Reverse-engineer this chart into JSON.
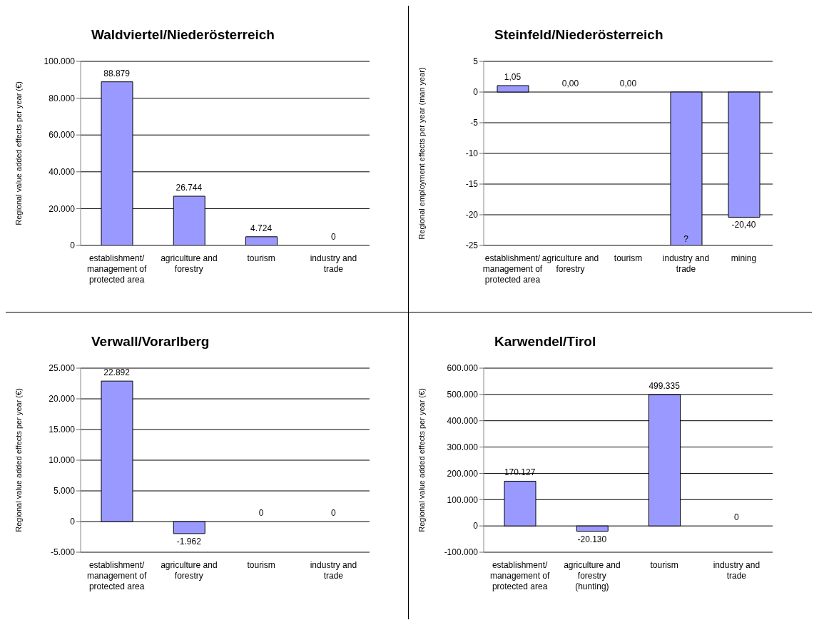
{
  "chart_data": [
    {
      "type": "bar",
      "title": "Waldviertel/Niederösterreich",
      "ylabel": "Regional value added effects per year (€)",
      "categories": [
        "establishment/ management of protected area",
        "agriculture and forestry",
        "tourism",
        "industry and trade"
      ],
      "values": [
        88879,
        26744,
        4724,
        0
      ],
      "value_labels": [
        "88.879",
        "26.744",
        "4.724",
        "0"
      ],
      "color": "#9999ff",
      "ylim": [
        0,
        100000
      ],
      "yticks": [
        0,
        {
          "value": 20000,
          "label": "20.000"
        },
        {
          "value": 40000,
          "label": "40.000"
        },
        {
          "value": 60000,
          "label": "60.000"
        },
        {
          "value": 80000,
          "label": "80.000"
        },
        {
          "value": 100000,
          "label": "100.000"
        }
      ],
      "grid": "y"
    },
    {
      "type": "bar",
      "title": "Steinfeld/Niederösterreich",
      "ylabel": "Regional employment effects per year (man year)",
      "categories": [
        "establishment/ management of protected area",
        "agriculture and forestry",
        "tourism",
        "industry and trade",
        "mining"
      ],
      "values": [
        1.05,
        0,
        0,
        -25,
        -20.4
      ],
      "value_labels": [
        "1,05",
        "0,00",
        "0,00",
        "?",
        "-20,40"
      ],
      "color": "#9999ff",
      "ylim": [
        -25,
        5
      ],
      "yticks": [
        -25,
        -20,
        -15,
        -10,
        -5,
        0,
        5
      ],
      "grid": "y"
    },
    {
      "type": "bar",
      "title": "Verwall/Vorarlberg",
      "ylabel": "Regional value added effects per year (€)",
      "categories": [
        "establishment/ management of protected area",
        "agriculture and forestry",
        "tourism",
        "industry and trade"
      ],
      "values": [
        22892,
        -1962,
        0,
        0
      ],
      "value_labels": [
        "22.892",
        "-1.962",
        "0",
        "0"
      ],
      "color": "#9999ff",
      "ylim": [
        -5000,
        25000
      ],
      "yticks": [
        {
          "value": -5000,
          "label": "-5.000"
        },
        0,
        {
          "value": 5000,
          "label": "5.000"
        },
        {
          "value": 10000,
          "label": "10.000"
        },
        {
          "value": 15000,
          "label": "15.000"
        },
        {
          "value": 20000,
          "label": "20.000"
        },
        {
          "value": 25000,
          "label": "25.000"
        }
      ],
      "grid": "y"
    },
    {
      "type": "bar",
      "title": "Karwendel/Tirol",
      "ylabel": "Regional value added effects per year (€)",
      "categories": [
        "establishment/ management of protected area",
        "agriculture and forestry (hunting)",
        "tourism",
        "industry and trade"
      ],
      "values": [
        170127,
        -20130,
        499335,
        0
      ],
      "value_labels": [
        "170.127",
        "-20.130",
        "499.335",
        "0"
      ],
      "color": "#9999ff",
      "ylim": [
        -100000,
        600000
      ],
      "yticks": [
        {
          "value": -100000,
          "label": "-100.000"
        },
        0,
        {
          "value": 100000,
          "label": "100.000"
        },
        {
          "value": 200000,
          "label": "200.000"
        },
        {
          "value": 300000,
          "label": "300.000"
        },
        {
          "value": 400000,
          "label": "400.000"
        },
        {
          "value": 500000,
          "label": "500.000"
        },
        {
          "value": 600000,
          "label": "600.000"
        }
      ],
      "grid": "y"
    }
  ]
}
